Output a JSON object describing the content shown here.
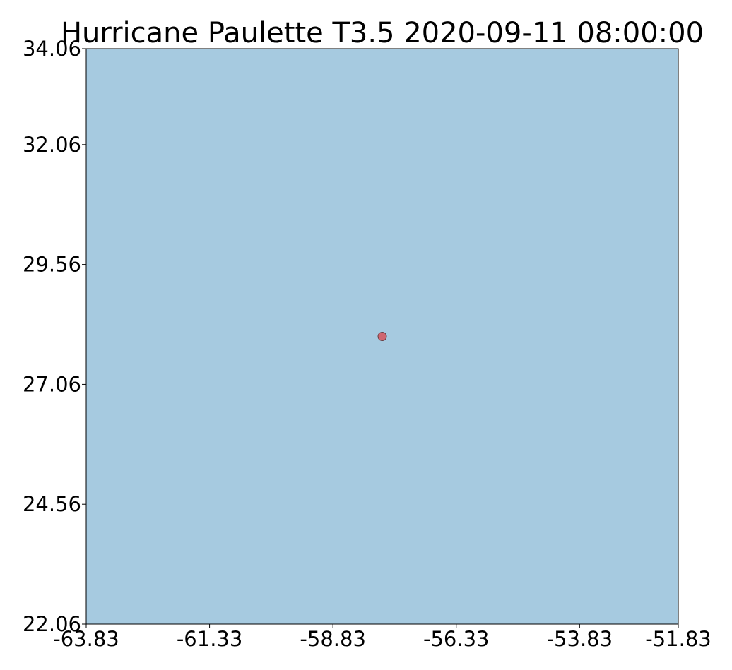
{
  "title": "Hurricane Paulette T3.5 2020-09-11 08:00:00",
  "colors": {
    "ocean": "#a6cae0",
    "marker_fill": "#cf6670",
    "marker_edge": "#6b3a3f",
    "frame": "#000000"
  },
  "chart_data": {
    "type": "scatter",
    "title": "Hurricane Paulette T3.5 2020-09-11 08:00:00",
    "xlabel": "",
    "ylabel": "",
    "xlim": [
      -63.83,
      -51.83
    ],
    "ylim": [
      22.06,
      34.06
    ],
    "grid": false,
    "x_ticks": [
      -63.83,
      -61.33,
      -58.83,
      -56.33,
      -53.83,
      -51.83
    ],
    "x_tick_labels": [
      "-63.83",
      "-61.33",
      "-58.83",
      "-56.33",
      "-53.83",
      "-51.83"
    ],
    "y_ticks": [
      22.06,
      24.56,
      27.06,
      29.56,
      32.06,
      34.06
    ],
    "y_tick_labels": [
      "22.06",
      "24.56",
      "27.06",
      "29.56",
      "32.06",
      "34.06"
    ],
    "points": [
      {
        "x": -57.83,
        "y": 28.06
      }
    ]
  }
}
